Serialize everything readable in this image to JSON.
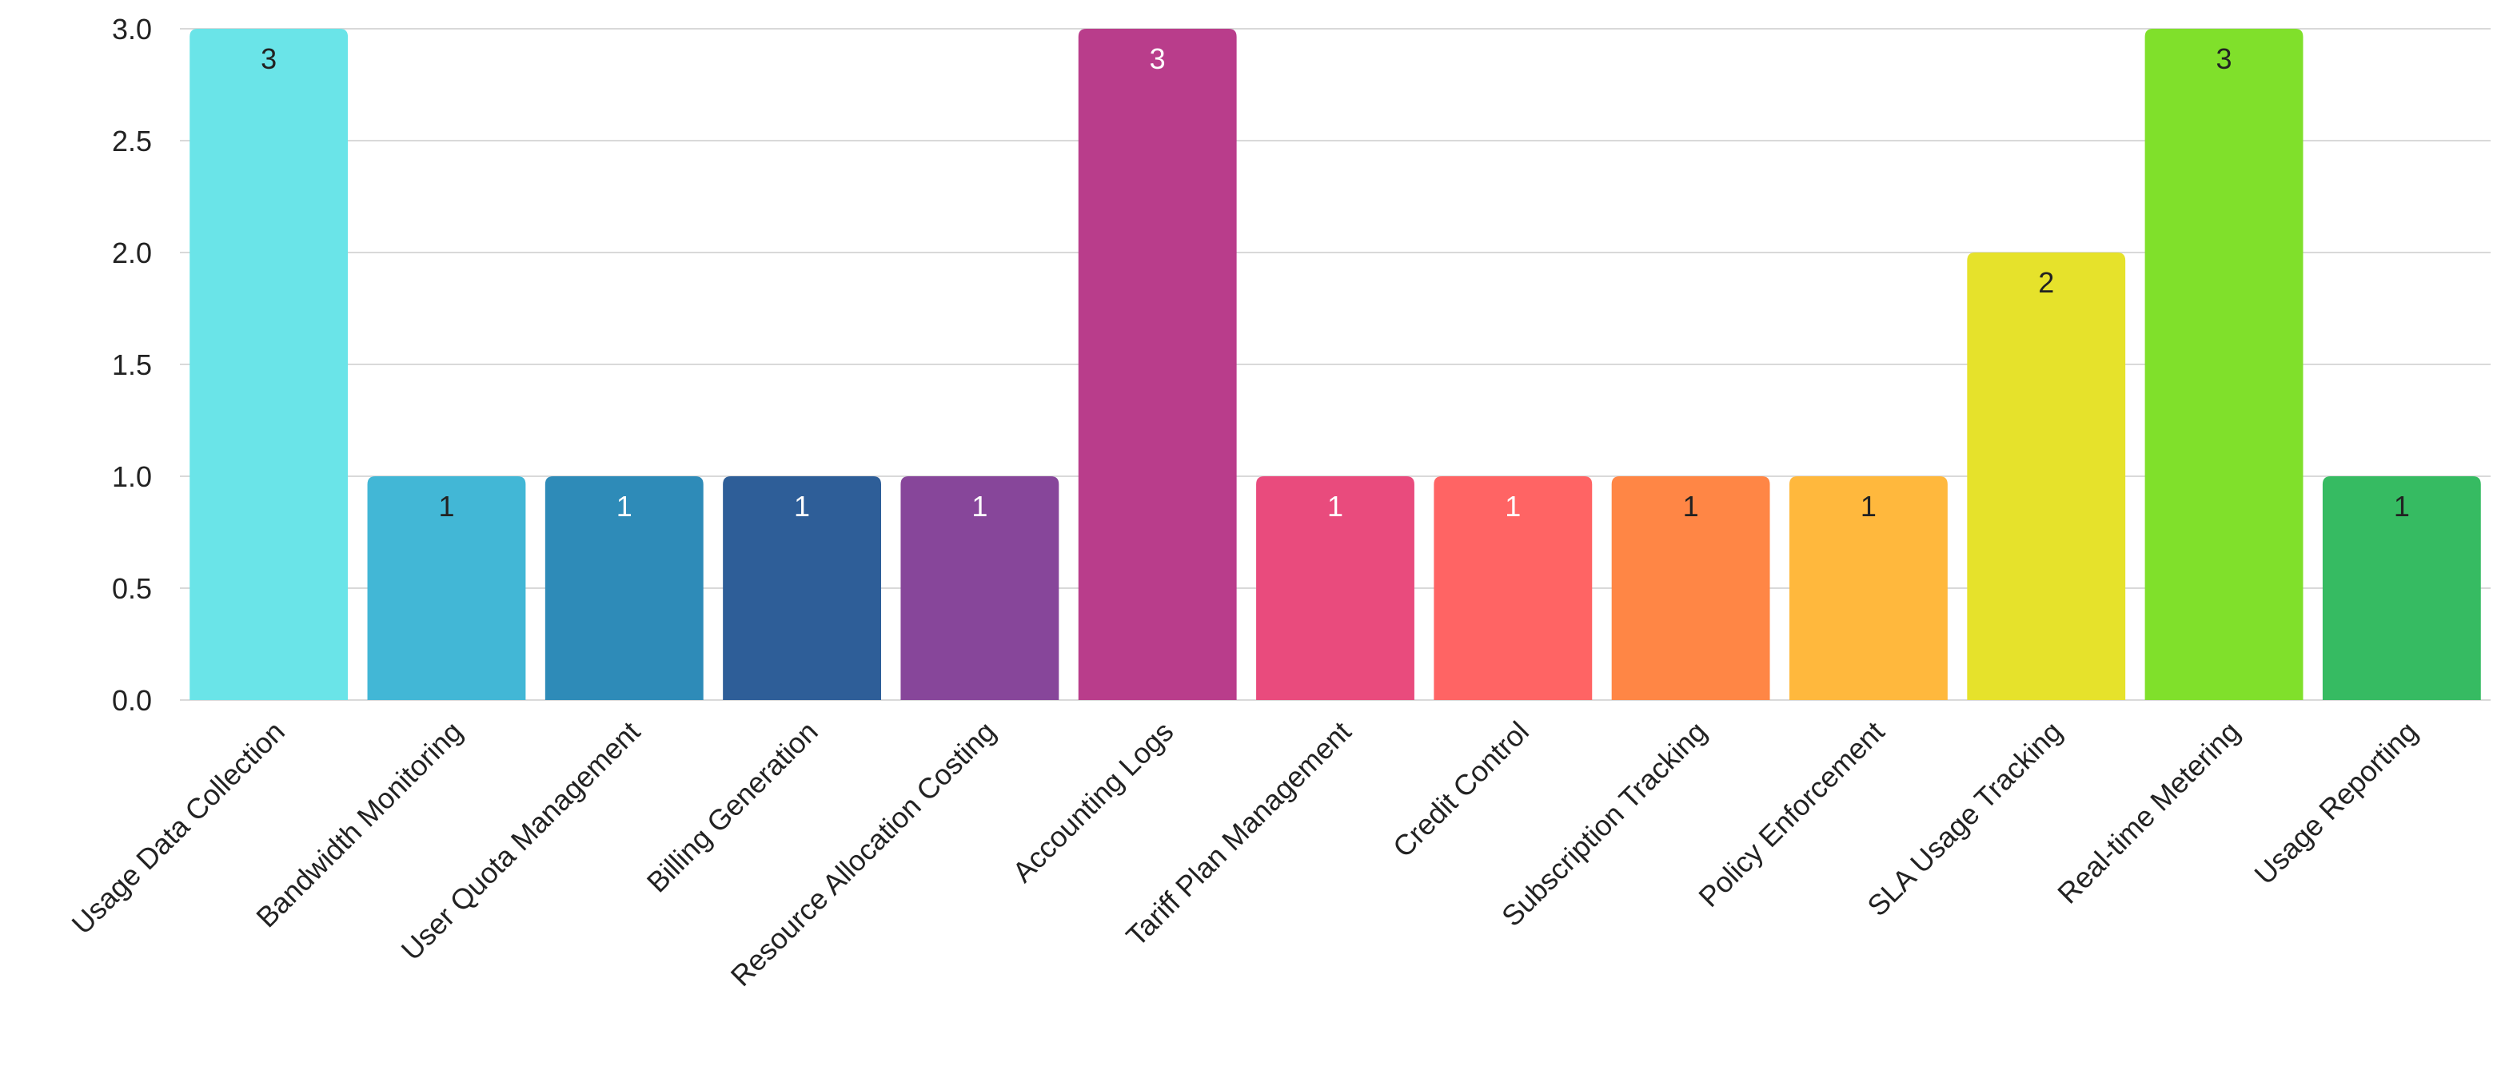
{
  "chart_data": {
    "type": "bar",
    "title": "",
    "xlabel": "",
    "ylabel": "",
    "ylim": [
      0,
      3.0
    ],
    "yticks": [
      "0.0",
      "0.5",
      "1.0",
      "1.5",
      "2.0",
      "2.5",
      "3.0"
    ],
    "grid": true,
    "legend": "none",
    "categories": [
      "Usage Data Collection",
      "Bandwidth Monitoring",
      "User Quota Management",
      "Billing Generation",
      "Resource Allocation Costing",
      "Accounting Logs",
      "Tariff Plan Management",
      "Credit Control",
      "Subscription Tracking",
      "Policy Enforcement",
      "SLA Usage Tracking",
      "Real-time Metering",
      "Usage Reporting"
    ],
    "values": [
      3,
      1,
      1,
      1,
      1,
      3,
      1,
      1,
      1,
      1,
      2,
      3,
      1
    ],
    "value_labels": [
      "3",
      "1",
      "1",
      "1",
      "1",
      "3",
      "1",
      "1",
      "1",
      "1",
      "2",
      "3",
      "1"
    ],
    "colors": [
      "#6ae4e8",
      "#42b7d6",
      "#2e8bb8",
      "#2e5e98",
      "#87469a",
      "#b93d8b",
      "#e94b7d",
      "#ff6464",
      "#ff8645",
      "#ffb83d",
      "#e6e22b",
      "#80e02b",
      "#36bb62"
    ],
    "value_label_colors": [
      "#222222",
      "#222222",
      "#ffffff",
      "#ffffff",
      "#ffffff",
      "#ffffff",
      "#ffffff",
      "#ffffff",
      "#222222",
      "#222222",
      "#222222",
      "#222222",
      "#222222"
    ]
  }
}
